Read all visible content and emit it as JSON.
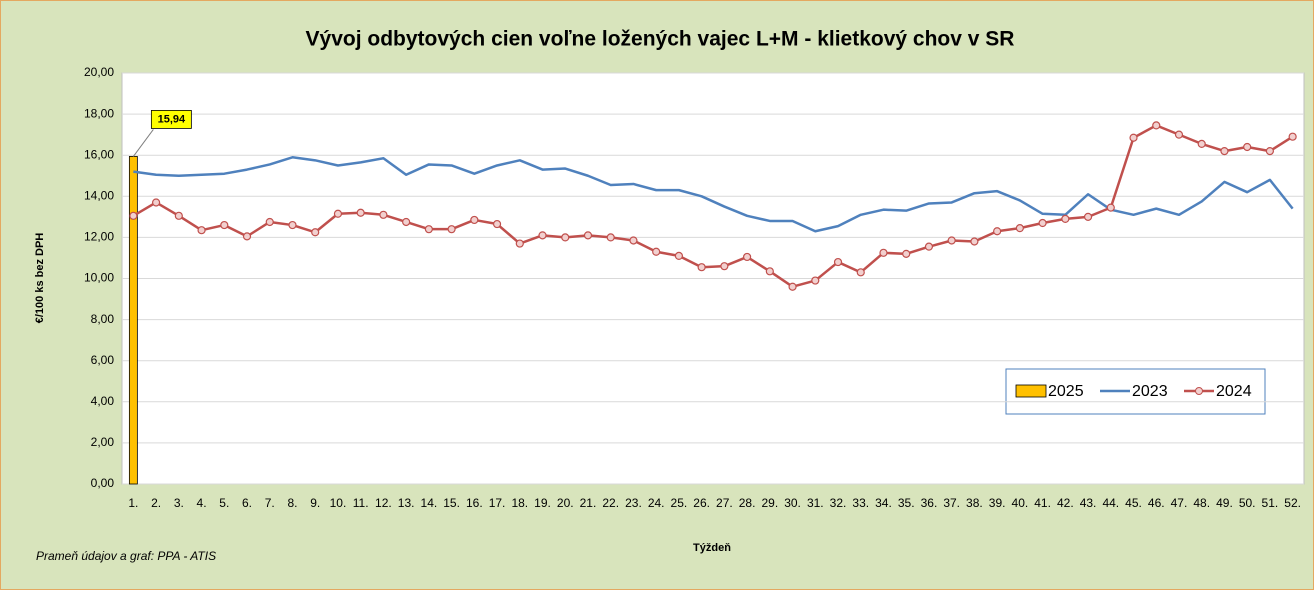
{
  "chart_data": {
    "type": "combo",
    "title": "Vývoj odbytových cien voľne ložených vajec L+M - klietkový chov v SR",
    "y_label": "€/100 ks bez DPH",
    "x_label": "Týždeň",
    "source": "Prameň údajov a graf: PPA - ATIS",
    "categories": [
      "1.",
      "2.",
      "3.",
      "4.",
      "5.",
      "6.",
      "7.",
      "8.",
      "9.",
      "10.",
      "11.",
      "12.",
      "13.",
      "14.",
      "15.",
      "16.",
      "17.",
      "18.",
      "19.",
      "20.",
      "21.",
      "22.",
      "23.",
      "24.",
      "25.",
      "26.",
      "27.",
      "28.",
      "29.",
      "30.",
      "31.",
      "32.",
      "33.",
      "34.",
      "35.",
      "36.",
      "37.",
      "38.",
      "39.",
      "40.",
      "41.",
      "42.",
      "43.",
      "44.",
      "45.",
      "46.",
      "47.",
      "48.",
      "49.",
      "50.",
      "51.",
      "52."
    ],
    "ylim": [
      0,
      20
    ],
    "yticks": [
      {
        "value": 0,
        "label": "0,00"
      },
      {
        "value": 2,
        "label": "2,00"
      },
      {
        "value": 4,
        "label": "4,00"
      },
      {
        "value": 6,
        "label": "6,00"
      },
      {
        "value": 8,
        "label": "8,00"
      },
      {
        "value": 10,
        "label": "10,00"
      },
      {
        "value": 12,
        "label": "12,00"
      },
      {
        "value": 14,
        "label": "14,00"
      },
      {
        "value": 16,
        "label": "16,00"
      },
      {
        "value": 18,
        "label": "18,00"
      },
      {
        "value": 20,
        "label": "20,00"
      }
    ],
    "grid": true,
    "legend": "bottom-right",
    "series": [
      {
        "name": "2025",
        "type": "bar",
        "color": "#ffc000",
        "values": [
          15.94,
          null,
          null,
          null,
          null,
          null,
          null,
          null,
          null,
          null,
          null,
          null,
          null,
          null,
          null,
          null,
          null,
          null,
          null,
          null,
          null,
          null,
          null,
          null,
          null,
          null,
          null,
          null,
          null,
          null,
          null,
          null,
          null,
          null,
          null,
          null,
          null,
          null,
          null,
          null,
          null,
          null,
          null,
          null,
          null,
          null,
          null,
          null,
          null,
          null,
          null,
          null
        ],
        "value_labels": [
          "15,94",
          null,
          null,
          null,
          null,
          null,
          null,
          null,
          null,
          null,
          null,
          null,
          null,
          null,
          null,
          null,
          null,
          null,
          null,
          null,
          null,
          null,
          null,
          null,
          null,
          null,
          null,
          null,
          null,
          null,
          null,
          null,
          null,
          null,
          null,
          null,
          null,
          null,
          null,
          null,
          null,
          null,
          null,
          null,
          null,
          null,
          null,
          null,
          null,
          null,
          null,
          null
        ]
      },
      {
        "name": "2023",
        "type": "line",
        "color": "#4f81bd",
        "values": [
          15.2,
          15.05,
          15.0,
          15.05,
          15.1,
          15.3,
          15.55,
          15.9,
          15.75,
          15.5,
          15.65,
          15.85,
          15.05,
          15.55,
          15.5,
          15.1,
          15.5,
          15.75,
          15.3,
          15.35,
          15.0,
          14.55,
          14.6,
          14.3,
          14.3,
          14.0,
          13.5,
          13.05,
          12.8,
          12.8,
          12.3,
          12.55,
          13.1,
          13.35,
          13.3,
          13.65,
          13.7,
          14.15,
          14.25,
          13.8,
          13.15,
          13.1,
          14.1,
          13.35,
          13.1,
          13.4,
          13.1,
          13.75,
          14.7,
          14.2,
          14.8,
          13.4
        ]
      },
      {
        "name": "2024",
        "type": "line-marker",
        "color": "#c0504d",
        "values": [
          13.05,
          13.7,
          13.05,
          12.35,
          12.6,
          12.05,
          12.75,
          12.6,
          12.25,
          13.15,
          13.2,
          13.1,
          12.75,
          12.4,
          12.4,
          12.85,
          12.65,
          11.7,
          12.1,
          12.0,
          12.1,
          12.0,
          11.85,
          11.3,
          11.1,
          10.55,
          10.6,
          11.05,
          10.35,
          9.6,
          9.9,
          10.8,
          10.3,
          11.25,
          11.2,
          11.55,
          11.85,
          11.8,
          12.3,
          12.45,
          12.7,
          12.9,
          13.0,
          13.45,
          16.85,
          17.45,
          17.0,
          16.55,
          16.2,
          16.4,
          16.2,
          16.9
        ]
      }
    ]
  }
}
